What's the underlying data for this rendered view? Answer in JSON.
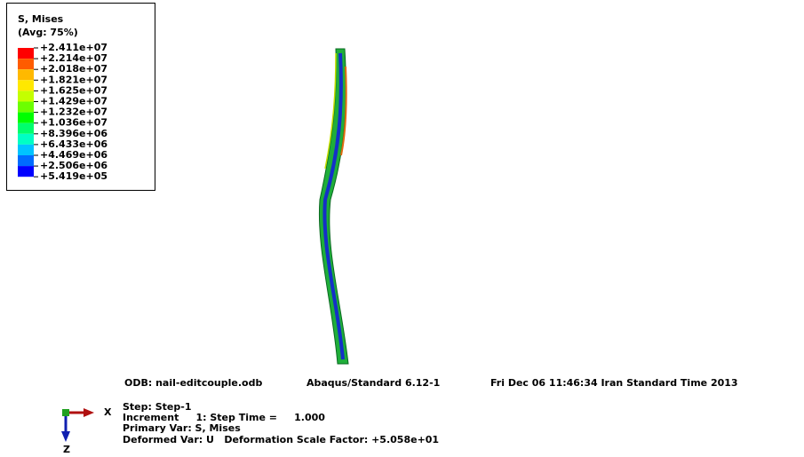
{
  "legend": {
    "title": "S, Mises",
    "subtitle": "(Avg: 75%)",
    "labels": [
      "+2.411e+07",
      "+2.214e+07",
      "+2.018e+07",
      "+1.821e+07",
      "+1.625e+07",
      "+1.429e+07",
      "+1.232e+07",
      "+1.036e+07",
      "+8.396e+06",
      "+6.433e+06",
      "+4.469e+06",
      "+2.506e+06",
      "+5.419e+05"
    ],
    "colors": [
      "#ff0000",
      "#ff5c00",
      "#ffb900",
      "#ffe800",
      "#c4ff00",
      "#6cff00",
      "#00ff00",
      "#00ff6c",
      "#00ffc4",
      "#00c4ff",
      "#006cff",
      "#0000ff"
    ]
  },
  "info": {
    "odb": "ODB: nail-editcouple.odb",
    "version": "Abaqus/Standard 6.12-1",
    "date": "Fri Dec 06 11:46:34 Iran Standard Time 2013",
    "step": "Step: Step-1",
    "increment": "Increment     1: Step Time =     1.000",
    "primary": "Primary Var: S, Mises",
    "deformed": "Deformed Var: U   Deformation Scale Factor: +5.058e+01"
  },
  "triad": {
    "x": "X",
    "z": "Z"
  }
}
